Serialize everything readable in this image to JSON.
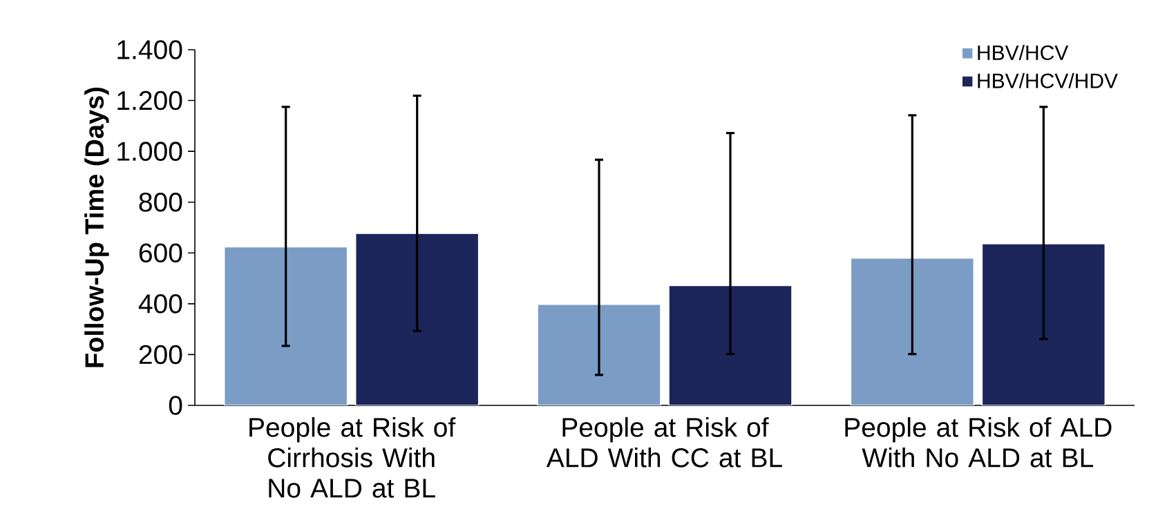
{
  "chart_data": {
    "type": "bar",
    "ylabel": "Follow-Up Time (Days)",
    "categories": [
      "People at Risk of Cirrhosis With No ALD at BL",
      "People at Risk of ALD With CC at BL",
      "People at Risk of ALD With No ALD at BL"
    ],
    "series": [
      {
        "name": "HBV/HCV",
        "color": "#7b9cc5",
        "values": [
          624,
          398,
          580
        ],
        "errors": [
          [
            234,
            1175
          ],
          [
            120,
            967
          ],
          [
            202,
            1142
          ]
        ]
      },
      {
        "name": "HBV/HCV/HDV",
        "color": "#1c2559",
        "values": [
          677,
          472,
          636
        ],
        "errors": [
          [
            293,
            1219
          ],
          [
            202,
            1072
          ],
          [
            261,
            1175
          ]
        ]
      }
    ],
    "ylim": [
      0,
      1400
    ],
    "yticks": [
      0,
      200,
      400,
      600,
      800,
      {
        "value": 1000,
        "label": "1.000"
      },
      {
        "value": 1200,
        "label": "1.200"
      },
      {
        "value": 1400,
        "label": "1.400"
      }
    ],
    "grid": false,
    "legend": "top right"
  }
}
